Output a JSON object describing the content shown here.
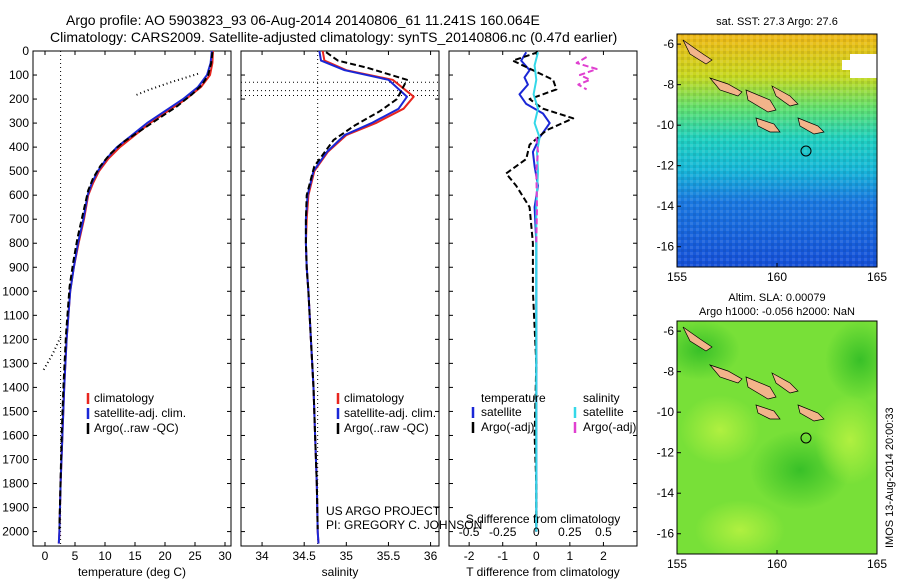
{
  "header": {
    "line1": "Argo profile: AO 5903823_93 06-Aug-2014 20140806_61 11.241S 160.064E",
    "line2": "Climatology: CARS2009. Satellite-adjusted climatology: synTS_20140806.nc (0.47d earlier)"
  },
  "footer": {
    "project": "US ARGO PROJECT",
    "pi": "PI: GREGORY C. JOHNSON",
    "stamp": "IMOS 13-Aug-2014 20:00:33"
  },
  "chart_data": [
    {
      "type": "line",
      "id": "temperature",
      "xlabel": "temperature (deg C)",
      "ylabel": "",
      "xlim": [
        -2,
        31
      ],
      "ylim": [
        0,
        2060
      ],
      "y_reversed": true,
      "xticks": [
        0,
        5,
        10,
        15,
        20,
        25,
        30
      ],
      "yticks": [
        0,
        100,
        200,
        300,
        400,
        500,
        600,
        700,
        800,
        900,
        1000,
        1100,
        1200,
        1300,
        1400,
        1500,
        1600,
        1700,
        1800,
        1900,
        2000
      ],
      "legend": [
        "climatology",
        "satellite-adj. clim.",
        "Argo(..raw -QC)"
      ],
      "legend_position": "lower-middle",
      "reference_x": 2.6,
      "series": [
        {
          "name": "climatology",
          "color": "#e8251e",
          "x": [
            28,
            27.9,
            27.5,
            26,
            23.5,
            20.5,
            17.5,
            15,
            12.5,
            10.5,
            9,
            8,
            7.2,
            6.5,
            5.6,
            4.8,
            4.2,
            3.6,
            3.2,
            2.9,
            2.6,
            2.4,
            2.3
          ],
          "y": [
            0,
            50,
            100,
            150,
            200,
            250,
            300,
            350,
            400,
            450,
            500,
            550,
            600,
            700,
            800,
            900,
            1000,
            1200,
            1400,
            1600,
            1800,
            2000,
            2050
          ]
        },
        {
          "name": "satellite-adj. clim.",
          "color": "#1a27d6",
          "x": [
            27.8,
            27.6,
            27,
            25.5,
            23,
            20,
            17,
            14.5,
            12,
            10.2,
            8.8,
            7.8,
            7.1,
            6.4,
            5.5,
            4.8,
            4.2,
            3.6,
            3.2,
            2.9,
            2.6,
            2.4,
            2.3
          ],
          "y": [
            0,
            50,
            100,
            150,
            200,
            250,
            300,
            350,
            400,
            450,
            500,
            550,
            600,
            700,
            800,
            900,
            1000,
            1200,
            1400,
            1600,
            1800,
            2000,
            2050
          ]
        },
        {
          "name": "Argo(..raw -QC)",
          "color": "#000000",
          "dash": "6,3",
          "x": [
            27.9,
            27.7,
            27.2,
            26.2,
            24.5,
            22,
            19,
            16,
            13,
            10.8,
            9.2,
            8,
            7.2,
            6.3,
            5.4,
            4.7,
            4.1,
            3.5,
            3.1,
            2.8,
            2.6,
            2.4
          ],
          "y": [
            5,
            50,
            100,
            140,
            180,
            230,
            280,
            330,
            380,
            430,
            480,
            530,
            580,
            680,
            780,
            880,
            980,
            1180,
            1380,
            1580,
            1780,
            1990
          ]
        },
        {
          "name": "Argo(raw)",
          "color": "#000000",
          "dash": "1,3",
          "x": [
            25.5,
            21,
            17.5,
            15
          ],
          "y": [
            95,
            130,
            160,
            185
          ]
        },
        {
          "name": "Argo(raw)",
          "color": "#000000",
          "dash": "1,3",
          "x": [
            2.6,
            1.3,
            -0.3
          ],
          "y": [
            1190,
            1260,
            1330
          ]
        }
      ]
    },
    {
      "type": "line",
      "id": "salinity",
      "xlabel": "salinity",
      "ylabel": "",
      "xlim": [
        33.75,
        36.1
      ],
      "ylim": [
        0,
        2060
      ],
      "y_reversed": true,
      "xticks": [
        34,
        34.5,
        35,
        35.5,
        36
      ],
      "legend": [
        "climatology",
        "satellite-adj. clim.",
        "Argo(..raw -QC)"
      ],
      "legend_position": "lower-middle",
      "reference_x": 34.66,
      "reference_y": [
        130,
        165,
        185
      ],
      "series": [
        {
          "name": "climatology",
          "color": "#e8251e",
          "x": [
            34.72,
            34.74,
            35.0,
            35.55,
            35.8,
            35.68,
            35.35,
            35.0,
            34.78,
            34.62,
            34.55,
            34.53,
            34.52,
            34.53,
            34.55,
            34.58,
            34.61,
            34.63,
            34.65,
            34.66,
            34.67
          ],
          "y": [
            0,
            40,
            80,
            120,
            190,
            240,
            300,
            350,
            420,
            500,
            600,
            700,
            800,
            900,
            1000,
            1200,
            1400,
            1600,
            1800,
            2000,
            2050
          ]
        },
        {
          "name": "satellite-adj. clim.",
          "color": "#1a27d6",
          "x": [
            34.68,
            34.7,
            34.98,
            35.5,
            35.72,
            35.62,
            35.3,
            34.98,
            34.77,
            34.61,
            34.54,
            34.52,
            34.52,
            34.53,
            34.55,
            34.58,
            34.61,
            34.63,
            34.65,
            34.66,
            34.67
          ],
          "y": [
            0,
            40,
            80,
            120,
            190,
            240,
            300,
            350,
            420,
            500,
            600,
            700,
            800,
            900,
            1000,
            1200,
            1400,
            1600,
            1800,
            2000,
            2050
          ]
        },
        {
          "name": "Argo(..raw -QC)",
          "color": "#000000",
          "dash": "6,3",
          "x": [
            34.76,
            34.9,
            35.25,
            35.72,
            35.6,
            35.4,
            35.1,
            34.85,
            34.62,
            34.53,
            34.52,
            34.52,
            34.53,
            34.55,
            34.58,
            34.61,
            34.63,
            34.65,
            34.66
          ],
          "y": [
            5,
            40,
            70,
            120,
            200,
            250,
            310,
            370,
            480,
            600,
            700,
            800,
            900,
            1000,
            1200,
            1400,
            1600,
            1800,
            1990
          ]
        }
      ]
    },
    {
      "type": "line",
      "id": "difference",
      "xlabel": "T difference from climatology",
      "x2label": "S difference from climatology",
      "ylabel": "",
      "xlim": [
        -2.6,
        3.0
      ],
      "ylim": [
        0,
        2060
      ],
      "y_reversed": true,
      "xticks": [
        -2,
        -1,
        0,
        1,
        2
      ],
      "x2ticks": [
        -0.5,
        -0.25,
        0,
        0.25,
        0.5
      ],
      "x2ticklabels": [
        "-0.5",
        "-0.25",
        "0",
        "0.25",
        "0.5"
      ],
      "legend": {
        "temperature": [
          "satellite",
          "Argo(-adj)"
        ],
        "salinity": [
          "satellite",
          "Argo(-adj)"
        ]
      },
      "legend_headers": [
        "temperature",
        "salinity"
      ],
      "legend_position": "lower-middle",
      "series": [
        {
          "name": "satellite",
          "group": "temperature",
          "color": "#1a27d6",
          "x": [
            -0.3,
            -0.45,
            -0.2,
            -0.35,
            -0.25,
            -0.5,
            -0.3,
            0.2,
            0.4,
            0.1,
            -0.1,
            -0.05,
            0.05,
            -0.05,
            0.0,
            0.0,
            0.0,
            0.0,
            0.0,
            0.0
          ],
          "y": [
            5,
            40,
            80,
            110,
            140,
            180,
            220,
            260,
            300,
            360,
            420,
            480,
            560,
            650,
            800,
            1000,
            1300,
            1600,
            1800,
            2000
          ]
        },
        {
          "name": "Argo(-adj)",
          "group": "temperature",
          "color": "#000000",
          "dash": "6,3",
          "x": [
            0.05,
            -0.7,
            -0.1,
            0.5,
            0.6,
            -0.2,
            0.2,
            1.1,
            0.3,
            -0.2,
            -0.3,
            -0.9,
            -0.6,
            -0.2,
            -0.1,
            -0.1,
            0.0,
            -0.05,
            0.0,
            0.0
          ],
          "y": [
            5,
            40,
            80,
            120,
            160,
            200,
            240,
            280,
            330,
            390,
            450,
            510,
            560,
            650,
            800,
            1000,
            1300,
            1600,
            1800,
            2000
          ]
        },
        {
          "name": "satellite",
          "group": "salinity",
          "color": "#34d8e8",
          "x": [
            0.05,
            -0.05,
            0.0,
            -0.08,
            0.05,
            -0.05,
            0.1,
            0.02,
            0.05,
            0.0,
            0.0,
            0.0,
            0.0,
            0.0
          ],
          "y": [
            5,
            60,
            120,
            180,
            240,
            300,
            360,
            420,
            500,
            650,
            900,
            1200,
            1600,
            2000
          ]
        },
        {
          "name": "Argo(-adj)",
          "group": "salinity",
          "color": "#e040d0",
          "dash": "6,3",
          "x": [
            1.5,
            1.2,
            1.8,
            1.3,
            1.6,
            1.25,
            1.5
          ],
          "y": [
            25,
            50,
            75,
            100,
            120,
            140,
            160
          ]
        },
        {
          "name": "Argo(-adj)",
          "group": "salinity",
          "color": "#e040d0",
          "dash": "6,3",
          "x": [
            0.0,
            0.05,
            0.0,
            0.02,
            0.0
          ],
          "y": [
            360,
            420,
            500,
            650,
            800
          ]
        }
      ]
    },
    {
      "type": "heatmap",
      "id": "sst-map",
      "title": "sat. SST: 27.3 Argo: 27.6",
      "xlim": [
        155,
        165
      ],
      "ylim": [
        -17,
        -5.5
      ],
      "xticks": [
        155,
        160,
        165
      ],
      "yticks": [
        -6,
        -8,
        -10,
        -12,
        -14,
        -16
      ],
      "marker": {
        "lon": 160.064,
        "lat": -11.241
      },
      "colors": {
        "north": "#f0c020",
        "middle": "#30d8b0",
        "south": "#1060e0",
        "land": "#f2b48a"
      }
    },
    {
      "type": "heatmap",
      "id": "sla-map",
      "title": "Altim. SLA: 0.00079",
      "subtitle": "Argo h1000: -0.056 h2000: NaN",
      "xlim": [
        155,
        165
      ],
      "ylim": [
        -17,
        -5.5
      ],
      "xticks": [
        155,
        160,
        165
      ],
      "yticks": [
        -6,
        -8,
        -10,
        -12,
        -14,
        -16
      ],
      "marker": {
        "lon": 160.064,
        "lat": -11.241
      },
      "colors": {
        "field": "#70e038",
        "field_dark": "#40c830",
        "field_light": "#a8f040",
        "land": "#f2b48a"
      }
    }
  ]
}
